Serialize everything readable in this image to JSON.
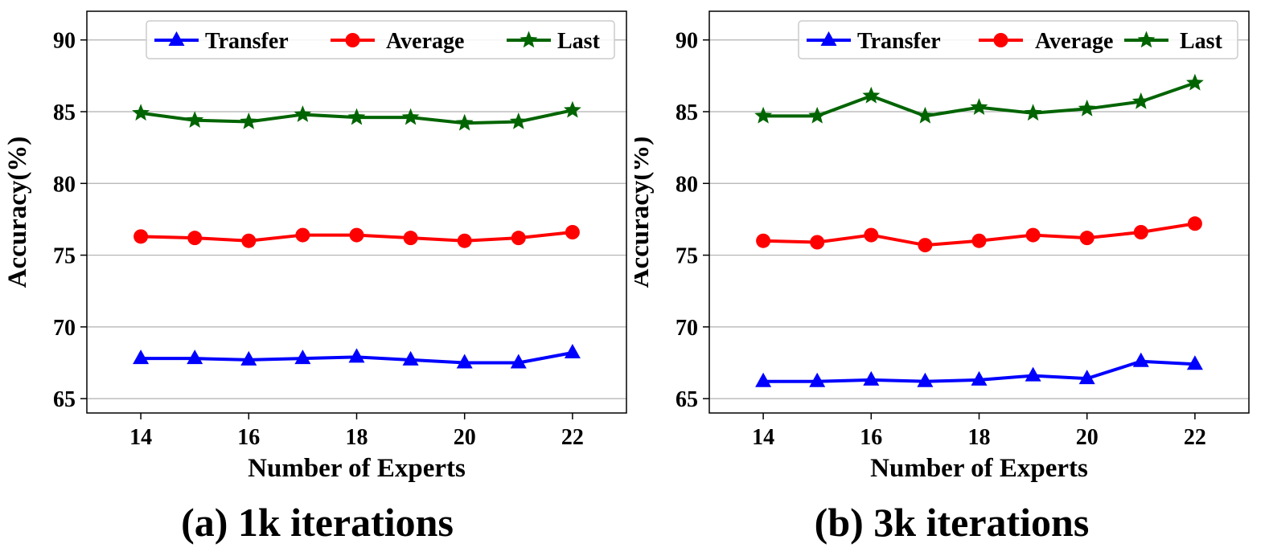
{
  "chart_data": [
    {
      "type": "line",
      "caption": "(a) 1k iterations",
      "xlabel": "Number of Experts",
      "ylabel": "Accuracy(%)",
      "xlim": [
        13,
        23
      ],
      "ylim": [
        64,
        92
      ],
      "xticks": [
        14,
        16,
        18,
        20,
        22
      ],
      "yticks": [
        65,
        70,
        75,
        80,
        85,
        90
      ],
      "grid": "horizontal",
      "legend": "top-right",
      "x": [
        14,
        15,
        16,
        17,
        18,
        19,
        20,
        21,
        22
      ],
      "series": [
        {
          "name": "Transfer",
          "color": "#0000ff",
          "marker": "triangle",
          "values": [
            67.8,
            67.8,
            67.7,
            67.8,
            67.9,
            67.7,
            67.5,
            67.5,
            68.2
          ]
        },
        {
          "name": "Average",
          "color": "#ff0000",
          "marker": "circle",
          "values": [
            76.3,
            76.2,
            76.0,
            76.4,
            76.4,
            76.2,
            76.0,
            76.2,
            76.6
          ]
        },
        {
          "name": "Last",
          "color": "#006400",
          "marker": "star",
          "values": [
            84.9,
            84.4,
            84.3,
            84.8,
            84.6,
            84.6,
            84.2,
            84.3,
            85.1
          ]
        }
      ]
    },
    {
      "type": "line",
      "caption": "(b) 3k iterations",
      "xlabel": "Number of Experts",
      "ylabel": "Accuracy(%)",
      "xlim": [
        13,
        23
      ],
      "ylim": [
        64,
        92
      ],
      "xticks": [
        14,
        16,
        18,
        20,
        22
      ],
      "yticks": [
        65,
        70,
        75,
        80,
        85,
        90
      ],
      "grid": "horizontal",
      "legend": "top-right",
      "x": [
        14,
        15,
        16,
        17,
        18,
        19,
        20,
        21,
        22
      ],
      "series": [
        {
          "name": "Transfer",
          "color": "#0000ff",
          "marker": "triangle",
          "values": [
            66.2,
            66.2,
            66.3,
            66.2,
            66.3,
            66.6,
            66.4,
            67.6,
            67.4
          ]
        },
        {
          "name": "Average",
          "color": "#ff0000",
          "marker": "circle",
          "values": [
            76.0,
            75.9,
            76.4,
            75.7,
            76.0,
            76.4,
            76.2,
            76.6,
            77.2
          ]
        },
        {
          "name": "Last",
          "color": "#006400",
          "marker": "star",
          "values": [
            84.7,
            84.7,
            86.1,
            84.7,
            85.3,
            84.9,
            85.2,
            85.7,
            87.0
          ]
        }
      ]
    }
  ]
}
